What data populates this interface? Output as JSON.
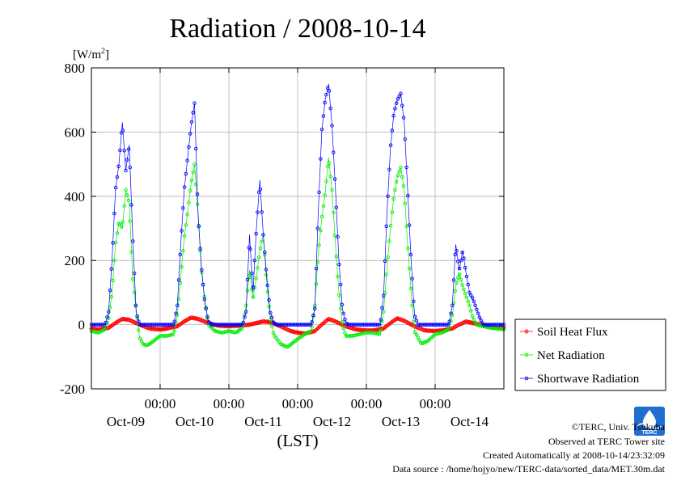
{
  "chart_data": {
    "type": "line",
    "title": "Radiation / 2008-10-14",
    "ylabel": "[W/m",
    "ylabel_sup": "2",
    "ylabel_close": "]",
    "xlabel": "(LST)",
    "ylim": [
      -200,
      800
    ],
    "yticks": [
      -200,
      0,
      200,
      400,
      600,
      800
    ],
    "xlim": [
      0,
      6
    ],
    "xtick_time_label": "00:00",
    "xtick_labels": [
      "Oct-09",
      "Oct-10",
      "Oct-11",
      "Oct-12",
      "Oct-13",
      "Oct-14"
    ],
    "grid": true,
    "legend_position": "right-bottom",
    "x_unit": "days since 2008-10-08 20:00 LST",
    "series": [
      {
        "name": "Soil Heat Flux",
        "color": "#ff0000",
        "marker": "diamond",
        "x": [
          0,
          0.1,
          0.25,
          0.35,
          0.45,
          0.55,
          0.7,
          0.85,
          1.0,
          1.1,
          1.25,
          1.35,
          1.45,
          1.55,
          1.7,
          1.85,
          2.0,
          2.15,
          2.3,
          2.4,
          2.5,
          2.6,
          2.75,
          2.9,
          3.0,
          3.1,
          3.25,
          3.35,
          3.45,
          3.55,
          3.7,
          3.85,
          4.0,
          4.1,
          4.25,
          4.35,
          4.45,
          4.55,
          4.7,
          4.85,
          5.0,
          5.1,
          5.25,
          5.35,
          5.45,
          5.55,
          5.7,
          5.85,
          6.0
        ],
        "values": [
          -12,
          -15,
          -10,
          5,
          18,
          15,
          0,
          -12,
          -15,
          -12,
          -5,
          10,
          22,
          18,
          5,
          -3,
          -5,
          -3,
          0,
          5,
          10,
          8,
          -5,
          -20,
          -25,
          -28,
          -20,
          0,
          18,
          10,
          -5,
          -15,
          -18,
          -18,
          -12,
          5,
          20,
          12,
          -5,
          -18,
          -20,
          -18,
          -12,
          0,
          10,
          5,
          -2,
          -8,
          -10
        ]
      },
      {
        "name": "Net Radiation",
        "color": "#00ee00",
        "marker": "circle",
        "x": [
          0,
          0.1,
          0.2,
          0.25,
          0.3,
          0.35,
          0.4,
          0.45,
          0.5,
          0.55,
          0.6,
          0.65,
          0.7,
          0.75,
          0.8,
          0.85,
          1.0,
          1.1,
          1.2,
          1.25,
          1.3,
          1.35,
          1.4,
          1.45,
          1.5,
          1.55,
          1.6,
          1.65,
          1.7,
          1.8,
          1.9,
          2.0,
          2.1,
          2.2,
          2.25,
          2.3,
          2.35,
          2.4,
          2.45,
          2.5,
          2.55,
          2.6,
          2.65,
          2.75,
          2.85,
          3.0,
          3.1,
          3.2,
          3.25,
          3.3,
          3.35,
          3.4,
          3.45,
          3.5,
          3.55,
          3.6,
          3.65,
          3.7,
          3.8,
          3.9,
          4.0,
          4.1,
          4.2,
          4.25,
          4.3,
          4.35,
          4.4,
          4.45,
          4.5,
          4.55,
          4.6,
          4.65,
          4.7,
          4.8,
          4.9,
          5.0,
          5.1,
          5.2,
          5.25,
          5.3,
          5.35,
          5.4,
          5.45,
          5.5,
          5.55,
          5.6,
          5.7,
          5.8,
          6.0
        ],
        "values": [
          -20,
          -25,
          -15,
          20,
          100,
          250,
          320,
          300,
          420,
          380,
          150,
          50,
          -40,
          -60,
          -65,
          -60,
          -35,
          -35,
          -30,
          30,
          150,
          270,
          350,
          440,
          500,
          350,
          170,
          80,
          0,
          -20,
          -25,
          -20,
          -25,
          -10,
          60,
          170,
          80,
          150,
          230,
          280,
          130,
          20,
          -30,
          -60,
          -70,
          -45,
          -30,
          -20,
          60,
          220,
          330,
          410,
          520,
          420,
          250,
          100,
          0,
          -35,
          -35,
          -30,
          -25,
          -25,
          -30,
          40,
          180,
          300,
          400,
          460,
          490,
          420,
          250,
          100,
          -20,
          -60,
          -50,
          -30,
          -25,
          -15,
          30,
          120,
          160,
          120,
          90,
          60,
          20,
          0,
          -5,
          -10,
          -15
        ]
      },
      {
        "name": "Shortwave Radiation",
        "color": "#0000ff",
        "marker": "circle",
        "x": [
          0,
          0.2,
          0.25,
          0.3,
          0.35,
          0.4,
          0.45,
          0.5,
          0.55,
          0.6,
          0.65,
          0.7,
          0.75,
          1.2,
          1.25,
          1.3,
          1.35,
          1.4,
          1.45,
          1.5,
          1.55,
          1.6,
          1.65,
          1.7,
          1.75,
          2.2,
          2.25,
          2.3,
          2.35,
          2.4,
          2.45,
          2.5,
          2.55,
          2.6,
          2.65,
          2.7,
          3.2,
          3.25,
          3.3,
          3.35,
          3.4,
          3.45,
          3.5,
          3.55,
          3.6,
          3.65,
          3.7,
          3.75,
          4.2,
          4.25,
          4.3,
          4.35,
          4.4,
          4.45,
          4.5,
          4.55,
          4.6,
          4.65,
          4.7,
          4.75,
          5.2,
          5.25,
          5.3,
          5.35,
          5.4,
          5.45,
          5.5,
          5.55,
          5.6,
          5.65,
          5.7,
          6.0
        ],
        "values": [
          0,
          0,
          40,
          200,
          420,
          500,
          630,
          480,
          560,
          280,
          40,
          0,
          0,
          0,
          60,
          250,
          420,
          520,
          620,
          690,
          350,
          180,
          70,
          10,
          0,
          0,
          40,
          280,
          100,
          300,
          450,
          280,
          150,
          40,
          5,
          0,
          0,
          50,
          350,
          600,
          700,
          750,
          620,
          420,
          200,
          50,
          5,
          0,
          0,
          90,
          350,
          550,
          660,
          700,
          720,
          630,
          420,
          200,
          30,
          0,
          0,
          60,
          250,
          170,
          230,
          160,
          100,
          80,
          50,
          20,
          0,
          0
        ]
      }
    ]
  },
  "credits": {
    "copyright": "©TERC, Univ. Tsukuba",
    "observed": "Observed at TERC Tower site",
    "created": "Created Automatically at 2008-10-14/23:32:09",
    "source": "Data source : /home/hojyo/new/TERC-data/sorted_data/MET.30m.dat"
  },
  "logo": {
    "icon": "terc-logo-icon",
    "text": "TERC",
    "color": "#1f6fd1"
  }
}
